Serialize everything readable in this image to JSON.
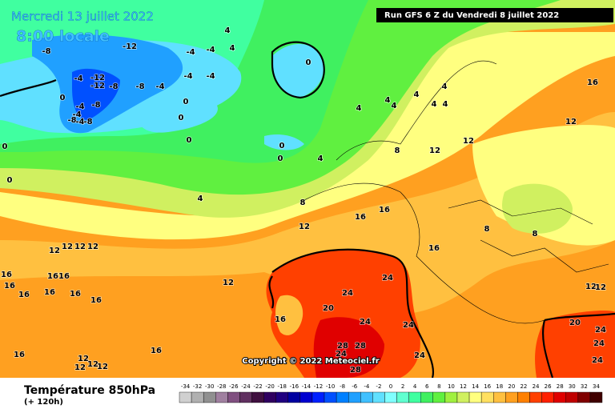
{
  "header": {
    "date": "Mercredi 13 juillet 2022",
    "time": "8:00 locale",
    "run": "Run GFS 6 Z du Vendredi 8 juillet 2022"
  },
  "copyright": "Copyright © 2022 Meteociel.fr",
  "legend": {
    "title": "Température 850hPa",
    "subtitle": "(+ 120h)",
    "scale": [
      -34,
      -32,
      -30,
      -28,
      -26,
      -24,
      -22,
      -20,
      -18,
      -16,
      -14,
      -12,
      -10,
      -8,
      -6,
      -4,
      -2,
      0,
      2,
      4,
      6,
      8,
      10,
      12,
      14,
      16,
      18,
      20,
      22,
      24,
      26,
      28,
      30,
      32,
      34
    ],
    "colors": [
      "#d0d0d0",
      "#b0b0b0",
      "#909090",
      "#a080a0",
      "#805080",
      "#603060",
      "#401040",
      "#300060",
      "#200080",
      "#0000a0",
      "#0000d0",
      "#0020ff",
      "#0050ff",
      "#0080ff",
      "#20a0ff",
      "#40c0ff",
      "#60e0ff",
      "#80ffff",
      "#60ffd0",
      "#40ffa0",
      "#40f060",
      "#60f040",
      "#a0f040",
      "#d0f060",
      "#ffff80",
      "#ffe060",
      "#ffc040",
      "#ffa020",
      "#ff8000",
      "#ff4000",
      "#ff2000",
      "#e00000",
      "#c00000",
      "#800000",
      "#400000"
    ]
  },
  "labels": [
    -8,
    -12,
    4,
    4,
    -4,
    -4,
    -4,
    -4,
    -12,
    -12,
    -4,
    -8,
    -8,
    -4,
    0,
    -4,
    -8,
    -4,
    -8,
    -4,
    -8,
    0,
    0,
    0,
    0,
    0,
    0,
    4,
    4,
    4,
    4,
    4,
    4,
    4,
    4,
    4,
    8,
    8,
    12,
    12,
    8,
    8,
    12,
    16,
    16,
    16,
    16,
    12,
    12,
    12,
    12,
    12,
    16,
    16,
    16,
    16,
    16,
    16,
    16,
    16,
    12,
    16,
    20,
    24,
    24,
    24,
    24,
    28,
    28,
    24,
    28,
    24,
    20,
    24,
    24,
    24,
    16,
    16,
    12,
    12,
    12,
    12,
    12,
    12,
    0,
    0
  ]
}
